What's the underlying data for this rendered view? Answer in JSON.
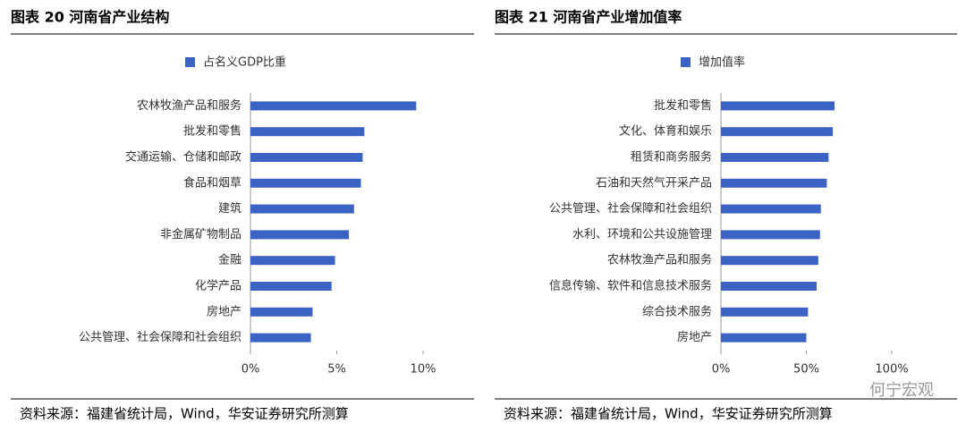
{
  "chart_data": [
    {
      "type": "bar",
      "orientation": "horizontal",
      "title": "图表 20 河南省产业结构",
      "legend": "占名义GDP比重",
      "color": "#3b63c4",
      "categories": [
        "农林牧渔产品和服务",
        "批发和零售",
        "交通运输、仓储和邮政",
        "食品和烟草",
        "建筑",
        "非金属矿物制品",
        "金融",
        "化学产品",
        "房地产",
        "公共管理、社会保障和社会组织"
      ],
      "values": [
        9.6,
        6.6,
        6.5,
        6.4,
        6.0,
        5.7,
        4.9,
        4.7,
        3.6,
        3.5
      ],
      "xlim": [
        0,
        10
      ],
      "xticks": [
        {
          "value": 0,
          "label": "0%"
        },
        {
          "value": 5,
          "label": "5%"
        },
        {
          "value": 10,
          "label": "10%"
        }
      ],
      "source": "资料来源：福建省统计局，Wind，华安证券研究所测算"
    },
    {
      "type": "bar",
      "orientation": "horizontal",
      "title": "图表 21 河南省产业增加值率",
      "legend": "增加值率",
      "color": "#3b63c4",
      "categories": [
        "批发和零售",
        "文化、体育和娱乐",
        "租赁和商务服务",
        "石油和天然气开采产品",
        "公共管理、社会保障和社会组织",
        "水利、环境和公共设施管理",
        "农林牧渔产品和服务",
        "信息传输、软件和信息技术服务",
        "综合技术服务",
        "房地产"
      ],
      "values": [
        66.5,
        65.5,
        63,
        62,
        58.5,
        58,
        57,
        56,
        51,
        50
      ],
      "xlim": [
        0,
        100
      ],
      "xticks": [
        {
          "value": 0,
          "label": "0%"
        },
        {
          "value": 50,
          "label": "50%"
        },
        {
          "value": 100,
          "label": "100%"
        }
      ],
      "source": "资料来源：福建省统计局，Wind，华安证券研究所测算"
    }
  ],
  "watermark": "何宁宏观"
}
